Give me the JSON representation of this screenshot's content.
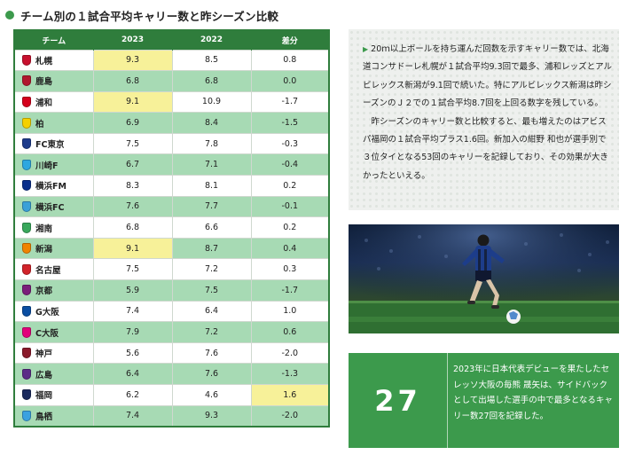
{
  "title": "チーム別の１試合平均キャリー数と昨シーズン比較",
  "table": {
    "headers": {
      "team": "チーム",
      "y2023": "2023",
      "y2022": "2022",
      "diff": "差分"
    },
    "rows": [
      {
        "team": "札幌",
        "v2023": "9.3",
        "v2022": "8.5",
        "diff": "0.8",
        "crest": "#c8102e"
      },
      {
        "team": "鹿島",
        "v2023": "6.8",
        "v2022": "6.8",
        "diff": "0.0",
        "crest": "#b0172e"
      },
      {
        "team": "浦和",
        "v2023": "9.1",
        "v2022": "10.9",
        "diff": "-1.7",
        "crest": "#d5001c"
      },
      {
        "team": "柏",
        "v2023": "6.9",
        "v2022": "8.4",
        "diff": "-1.5",
        "crest": "#f5d000"
      },
      {
        "team": "FC東京",
        "v2023": "7.5",
        "v2022": "7.8",
        "diff": "-0.3",
        "crest": "#1e3c8c"
      },
      {
        "team": "川崎F",
        "v2023": "6.7",
        "v2022": "7.1",
        "diff": "-0.4",
        "crest": "#2ea7e0"
      },
      {
        "team": "横浜FM",
        "v2023": "8.3",
        "v2022": "8.1",
        "diff": "0.2",
        "crest": "#0a2f8c"
      },
      {
        "team": "横浜FC",
        "v2023": "7.6",
        "v2022": "7.7",
        "diff": "-0.1",
        "crest": "#3aa0d8"
      },
      {
        "team": "湘南",
        "v2023": "6.8",
        "v2022": "6.6",
        "diff": "0.2",
        "crest": "#39a85c"
      },
      {
        "team": "新潟",
        "v2023": "9.1",
        "v2022": "8.7",
        "diff": "0.4",
        "crest": "#f08300"
      },
      {
        "team": "名古屋",
        "v2023": "7.5",
        "v2022": "7.2",
        "diff": "0.3",
        "crest": "#d2232a"
      },
      {
        "team": "京都",
        "v2023": "5.9",
        "v2022": "7.5",
        "diff": "-1.7",
        "crest": "#7a1e7a"
      },
      {
        "team": "G大阪",
        "v2023": "7.4",
        "v2022": "6.4",
        "diff": "1.0",
        "crest": "#0a4ea2"
      },
      {
        "team": "C大阪",
        "v2023": "7.9",
        "v2022": "7.2",
        "diff": "0.6",
        "crest": "#e2007a"
      },
      {
        "team": "神戸",
        "v2023": "5.6",
        "v2022": "7.6",
        "diff": "-2.0",
        "crest": "#8b1a2b"
      },
      {
        "team": "広島",
        "v2023": "6.4",
        "v2022": "7.6",
        "diff": "-1.3",
        "crest": "#5b2c87"
      },
      {
        "team": "福岡",
        "v2023": "6.2",
        "v2022": "4.6",
        "diff": "1.6",
        "crest": "#1a2a5e"
      },
      {
        "team": "鳥栖",
        "v2023": "7.4",
        "v2022": "9.3",
        "diff": "-2.0",
        "crest": "#3ba1e0"
      }
    ]
  },
  "article": {
    "p1": "20ｍ以上ボールを持ち運んだ回数を示すキャリー数では、北海道コンサドーレ札幌が１試合平均9.3回で最多、浦和レッズとアルビレックス新潟が9.1回で続いた。特にアルビレックス新潟は昨シーズンのＪ２での１試合平均8.7回を上回る数字を残している。",
    "p2": "昨シーズンのキャリー数と比較すると、最も増えたのはアビスパ福岡の１試合平均プラス1.6回。新加入の紺野 和也が選手別で３位タイとなる53回のキャリーを記録しており、その効果が大きかったといえる。"
  },
  "stat": {
    "number": "27",
    "text": "2023年に日本代表デビューを果たしたセレッソ大阪の毎熊 晟矢は、サイドバックとして出場した選手の中で最多となるキャリー数27回を記録した。"
  },
  "colors": {
    "green_dark": "#2f7d3c",
    "green_light": "#a7dab4",
    "highlight": "#f7f199",
    "accent": "#3c9a4c"
  }
}
